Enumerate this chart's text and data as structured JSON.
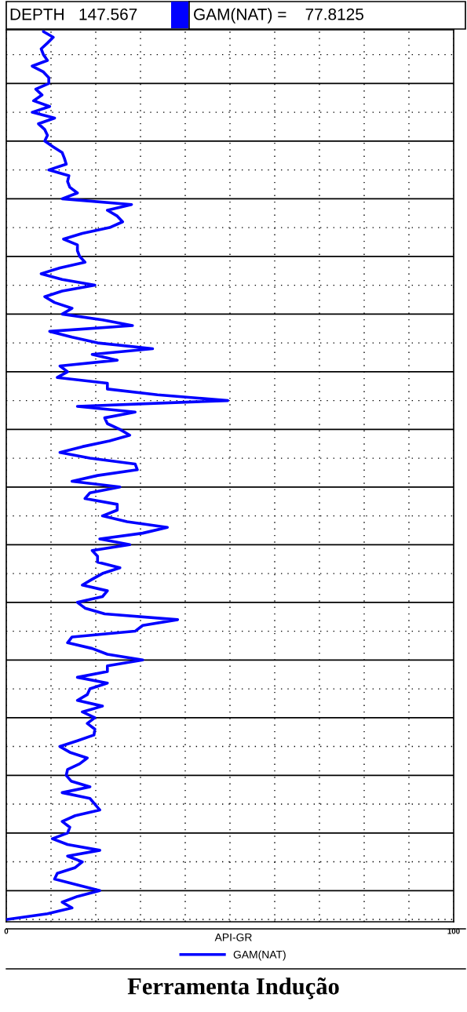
{
  "chart_data": {
    "type": "line",
    "orientation": "horizontal",
    "title": "Ferramenta Indução",
    "xlabel": "API-GR",
    "annotations": [
      "DEPTH   147.567",
      "GAM(NAT) =    77.8125"
    ],
    "categories": [
      null,
      null,
      null,
      null,
      null,
      null,
      null,
      null,
      null,
      null,
      null,
      null,
      null,
      null,
      null,
      null,
      null,
      null,
      null,
      null,
      null,
      null,
      null,
      null,
      null,
      null,
      null,
      null,
      null,
      null,
      null,
      null,
      null,
      null,
      null,
      null,
      null,
      null,
      null,
      null,
      null,
      null,
      null,
      null,
      null,
      null,
      null,
      null,
      null,
      null,
      null,
      null,
      null,
      null,
      null,
      null,
      null,
      null,
      null,
      null,
      null,
      null,
      null,
      null,
      null,
      null,
      null,
      null,
      null,
      null,
      null,
      null,
      null,
      null,
      null,
      null,
      null,
      null,
      null,
      null,
      null,
      null,
      null,
      null,
      null,
      null,
      null,
      null,
      null,
      null,
      null,
      null,
      null,
      null,
      null,
      null,
      null,
      null,
      null,
      null,
      null,
      null,
      null,
      null,
      null,
      null,
      null,
      null,
      null,
      null,
      null,
      null,
      null,
      null,
      null,
      null,
      null,
      null,
      null,
      null,
      null,
      null,
      null,
      null,
      null,
      null,
      null,
      null,
      null,
      null,
      null,
      null,
      null,
      null,
      null,
      null,
      null,
      null,
      null,
      null,
      null,
      null,
      null,
      null,
      null,
      null,
      null,
      null,
      null,
      null,
      null,
      null,
      null,
      null,
      null
    ],
    "series": [
      {
        "name": "GAM(NAT)",
        "color": "#0000ff",
        "values": [
          8.3,
          10.5,
          9.2,
          7.8,
          8.3,
          9.2,
          5.8,
          8.3,
          9.5,
          9.5,
          6.6,
          8.0,
          6.1,
          9.7,
          5.8,
          10.8,
          7.2,
          8.6,
          9.2,
          8.6,
          10.5,
          12.5,
          13.0,
          13.4,
          9.5,
          14.0,
          13.7,
          14.2,
          15.9,
          12.5,
          28.0,
          22.6,
          24.8,
          26.0,
          23.1,
          17.0,
          12.8,
          15.9,
          15.9,
          16.4,
          17.6,
          12.0,
          7.8,
          12.5,
          19.8,
          12.5,
          8.6,
          10.8,
          14.7,
          12.5,
          21.5,
          28.2,
          9.7,
          14.7,
          20.4,
          32.7,
          19.2,
          24.8,
          12.0,
          13.7,
          11.4,
          22.6,
          22.6,
          33.8,
          49.5,
          15.9,
          28.8,
          22.0,
          22.6,
          25.4,
          27.6,
          23.1,
          17.0,
          12.0,
          18.7,
          28.8,
          29.3,
          20.4,
          14.7,
          25.4,
          18.7,
          17.6,
          24.8,
          24.8,
          21.5,
          27.0,
          36.0,
          30.5,
          20.9,
          27.6,
          19.2,
          20.4,
          20.4,
          25.4,
          21.5,
          19.2,
          17.0,
          22.6,
          21.5,
          15.9,
          17.6,
          22.0,
          38.3,
          30.5,
          28.8,
          14.7,
          13.7,
          19.2,
          22.6,
          30.5,
          22.6,
          22.6,
          15.9,
          22.6,
          18.7,
          18.1,
          15.9,
          21.5,
          17.0,
          19.8,
          18.1,
          19.8,
          19.6,
          15.9,
          12.0,
          14.2,
          18.1,
          16.4,
          13.7,
          13.4,
          14.5,
          18.7,
          12.5,
          18.7,
          19.8,
          20.9,
          15.4,
          12.5,
          14.2,
          13.7,
          10.3,
          13.7,
          20.9,
          13.7,
          17.0,
          15.4,
          11.4,
          10.8,
          15.9,
          20.9,
          15.9,
          12.5,
          14.7,
          9.2,
          0.2
        ]
      }
    ],
    "xlim": [
      0,
      100
    ],
    "xticks": [
      0,
      {
        "value": 10,
        "label": null
      },
      {
        "value": 20,
        "label": null
      },
      {
        "value": 30,
        "label": null
      },
      {
        "value": 40,
        "label": null
      },
      {
        "value": 50,
        "label": null
      },
      {
        "value": 60,
        "label": null
      },
      {
        "value": 70,
        "label": null
      },
      {
        "value": 80,
        "label": null
      },
      {
        "value": 90,
        "label": null
      },
      100
    ],
    "grid": true,
    "legend": "bottom",
    "line_style": "solid",
    "marker": "none"
  }
}
